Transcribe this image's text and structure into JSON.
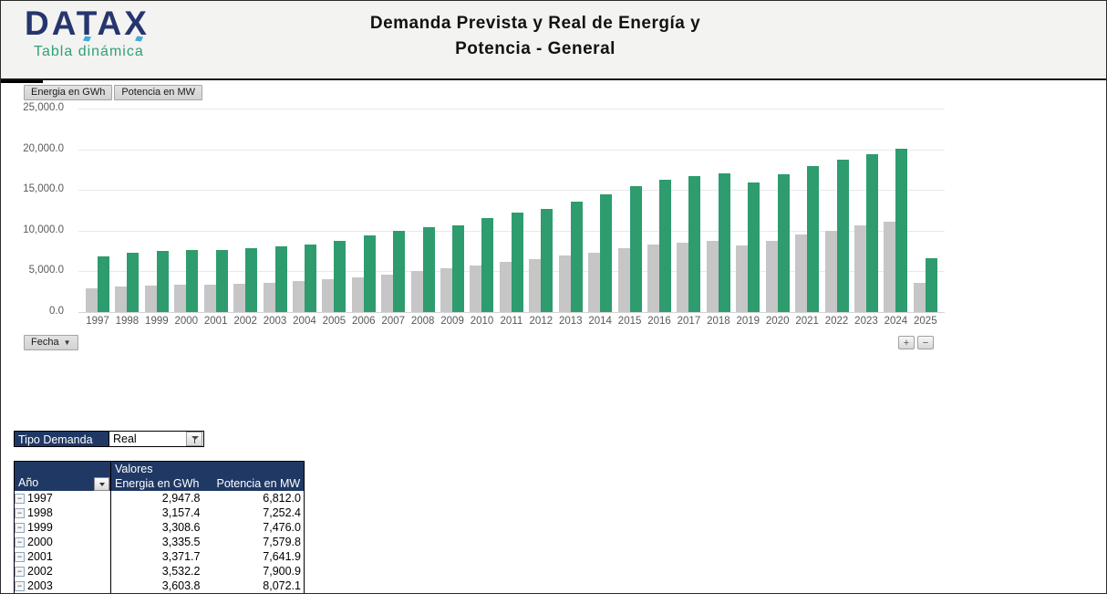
{
  "header": {
    "logo": {
      "brand": "DATAX",
      "subtitle": "Tabla dinámica",
      "brand_color": "#27356e",
      "subtitle_color": "#2fa07c"
    },
    "title_line1": "Demanda Prevista y Real de Energía y",
    "title_line2": "Potencia - General"
  },
  "chart": {
    "field_buttons": [
      "Energia en GWh",
      "Potencia en MW"
    ],
    "axis_field_button": "Fecha",
    "expand_button": "+",
    "collapse_button": "−"
  },
  "chart_data": {
    "type": "bar",
    "title": "Demanda Prevista y Real de Energía y Potencia - General",
    "categories": [
      1997,
      1998,
      1999,
      2000,
      2001,
      2002,
      2003,
      2004,
      2005,
      2006,
      2007,
      2008,
      2009,
      2010,
      2011,
      2012,
      2013,
      2014,
      2015,
      2016,
      2017,
      2018,
      2019,
      2020,
      2021,
      2022,
      2023,
      2024,
      2025
    ],
    "series": [
      {
        "name": "Energia en GWh",
        "color": "#c6c6c6",
        "values": [
          2947.8,
          3157.4,
          3308.6,
          3335.5,
          3371.7,
          3532.2,
          3603.8,
          3760,
          4050,
          4310,
          4650,
          5050,
          5350,
          5750,
          6200,
          6550,
          7000,
          7300,
          7800,
          8300,
          8500,
          8700,
          8200,
          8700,
          9500,
          10000,
          10600,
          11100,
          3600
        ]
      },
      {
        "name": "Potencia en MW",
        "color": "#2e9c6e",
        "values": [
          6812.0,
          7252.4,
          7476.0,
          7579.8,
          7641.9,
          7900.9,
          8072.1,
          8310,
          8700,
          9400,
          10000,
          10450,
          10620,
          11500,
          12200,
          12720,
          13600,
          14420,
          15480,
          16220,
          16650,
          17050,
          15900,
          16900,
          17950,
          18700,
          19400,
          20050,
          6600
        ]
      }
    ],
    "ylim": [
      0,
      25000
    ],
    "ytick_labels": [
      "25,000.0",
      "20,000.0",
      "15,000.0",
      "10,000.0",
      "5,000.0",
      "0.0"
    ],
    "xlabel": "Fecha",
    "ylabel": "",
    "grid": true,
    "legend_position": "top-left-field-buttons"
  },
  "filter": {
    "label": "Tipo Demanda",
    "value": "Real"
  },
  "pivot": {
    "values_header": "Valores",
    "row_header": "Año",
    "columns": [
      "Energia en GWh",
      "Potencia en MW"
    ],
    "rows": [
      {
        "year": "1997",
        "energia": "2,947.8",
        "potencia": "6,812.0"
      },
      {
        "year": "1998",
        "energia": "3,157.4",
        "potencia": "7,252.4"
      },
      {
        "year": "1999",
        "energia": "3,308.6",
        "potencia": "7,476.0"
      },
      {
        "year": "2000",
        "energia": "3,335.5",
        "potencia": "7,579.8"
      },
      {
        "year": "2001",
        "energia": "3,371.7",
        "potencia": "7,641.9"
      },
      {
        "year": "2002",
        "energia": "3,532.2",
        "potencia": "7,900.9"
      },
      {
        "year": "2003",
        "energia": "3,603.8",
        "potencia": "8,072.1"
      }
    ]
  },
  "icons": {
    "collapse_glyph": "−",
    "dropdown_arrow": "▼"
  },
  "colors": {
    "header_navy": "#1f3864",
    "bar_gray": "#c6c6c6",
    "bar_green": "#2e9c6e",
    "axis_text": "#595959",
    "header_bg": "#f3f3f1"
  }
}
